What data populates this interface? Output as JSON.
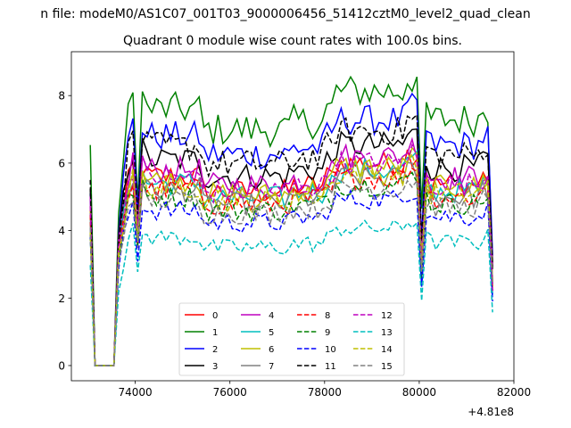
{
  "suptitle": "n file: modeM0/AS1C07_001T03_9000006456_51412cztM0_level2_quad_clean",
  "chart_data": {
    "type": "line",
    "title": "Quadrant 0 module wise count rates with 100.0s bins.",
    "xlabel": "",
    "ylabel": "",
    "x_offset_label": "+4.81e8",
    "xlim": [
      72650,
      82000
    ],
    "ylim": [
      -0.45,
      9.3
    ],
    "xticks": [
      74000,
      76000,
      78000,
      80000,
      82000
    ],
    "xtick_labels": [
      "74000",
      "76000",
      "78000",
      "80000",
      "82000"
    ],
    "yticks": [
      0,
      2,
      4,
      6,
      8
    ],
    "ytick_labels": [
      "0",
      "2",
      "4",
      "6",
      "8"
    ],
    "grid": false,
    "legend_position": "lower-center",
    "legend_columns": 4,
    "x_start": 73050,
    "x_end": 81550,
    "series": [
      {
        "name": "0",
        "color": "#ff0000",
        "style": "solid",
        "level": 5.6
      },
      {
        "name": "1",
        "color": "#008000",
        "style": "solid",
        "level": 7.6
      },
      {
        "name": "2",
        "color": "#0000ff",
        "style": "solid",
        "level": 6.8
      },
      {
        "name": "3",
        "color": "#000000",
        "style": "solid",
        "level": 6.1
      },
      {
        "name": "4",
        "color": "#bf00bf",
        "style": "solid",
        "level": 5.8
      },
      {
        "name": "5",
        "color": "#00bfbf",
        "style": "solid",
        "level": 5.4
      },
      {
        "name": "6",
        "color": "#bfbf00",
        "style": "solid",
        "level": 5.5
      },
      {
        "name": "7",
        "color": "#808080",
        "style": "solid",
        "level": 5.2
      },
      {
        "name": "8",
        "color": "#ff0000",
        "style": "dashed",
        "level": 5.2
      },
      {
        "name": "9",
        "color": "#008000",
        "style": "dashed",
        "level": 5.0
      },
      {
        "name": "10",
        "color": "#0000ff",
        "style": "dashed",
        "level": 4.6
      },
      {
        "name": "11",
        "color": "#000000",
        "style": "dashed",
        "level": 6.5
      },
      {
        "name": "12",
        "color": "#bf00bf",
        "style": "dashed",
        "level": 5.6
      },
      {
        "name": "13",
        "color": "#00bfbf",
        "style": "dashed",
        "level": 3.8
      },
      {
        "name": "14",
        "color": "#bfbf00",
        "style": "dashed",
        "level": 5.3
      },
      {
        "name": "15",
        "color": "#808080",
        "style": "dashed",
        "level": 4.9
      }
    ]
  }
}
